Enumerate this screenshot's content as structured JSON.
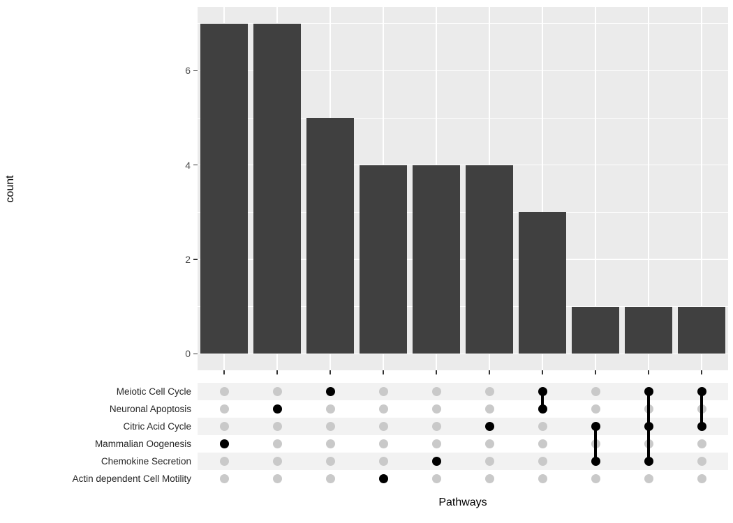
{
  "chart_data": {
    "type": "bar",
    "variant": "upset-plot",
    "title": "",
    "xlabel": "Pathways",
    "ylabel": "count",
    "yticks": [
      0,
      2,
      4,
      6
    ],
    "ytick_labels": [
      "0",
      "2",
      "4",
      "6"
    ],
    "ylim": [
      0,
      7
    ],
    "grid": true,
    "legend": false,
    "sets": [
      "Meiotic Cell Cycle",
      "Neuronal Apoptosis",
      "Citric Acid Cycle",
      "Mammalian Oogenesis",
      "Chemokine Secretion",
      "Actin dependent Cell Motility"
    ],
    "values": [
      7,
      7,
      5,
      4,
      4,
      4,
      3,
      1,
      1,
      1
    ],
    "combinations": [
      {
        "sets": [
          "Mammalian Oogenesis"
        ],
        "count": 7
      },
      {
        "sets": [
          "Neuronal Apoptosis"
        ],
        "count": 7
      },
      {
        "sets": [
          "Meiotic Cell Cycle"
        ],
        "count": 5
      },
      {
        "sets": [
          "Actin dependent Cell Motility"
        ],
        "count": 4
      },
      {
        "sets": [
          "Chemokine Secretion"
        ],
        "count": 4
      },
      {
        "sets": [
          "Citric Acid Cycle"
        ],
        "count": 4
      },
      {
        "sets": [
          "Meiotic Cell Cycle",
          "Neuronal Apoptosis"
        ],
        "count": 3
      },
      {
        "sets": [
          "Citric Acid Cycle",
          "Chemokine Secretion"
        ],
        "count": 1
      },
      {
        "sets": [
          "Meiotic Cell Cycle",
          "Citric Acid Cycle",
          "Chemokine Secretion"
        ],
        "count": 1
      },
      {
        "sets": [
          "Meiotic Cell Cycle",
          "Citric Acid Cycle"
        ],
        "count": 1
      }
    ],
    "colors": {
      "bar": "#404040",
      "panel_bg": "#ebebeb",
      "grid": "#ffffff",
      "dot_empty": "#c9c9c9",
      "dot_filled": "#000000",
      "stripe_a": "#f2f2f2",
      "stripe_b": "#ffffff",
      "tick_text": "#4d4d4d",
      "axis_title_text": "#000000",
      "tick_mark": "#333333"
    }
  }
}
